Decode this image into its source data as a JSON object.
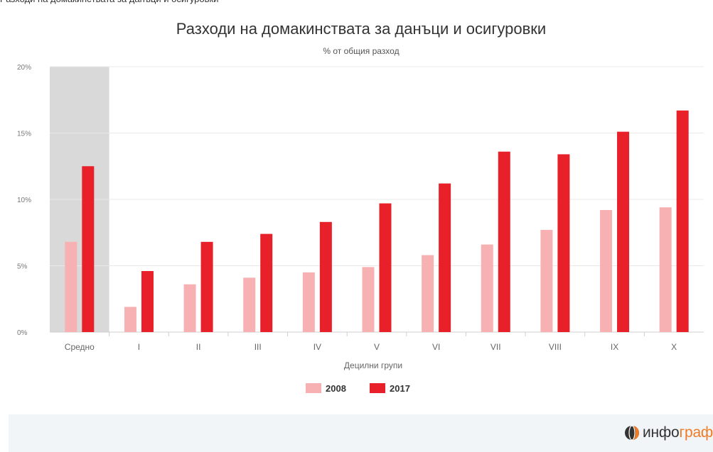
{
  "caption_fragment": "Разходи на домакинствата за данъци и осигуровки",
  "chart_data": {
    "type": "bar",
    "title": "Разходи на домакинствата за данъци и осигуровки",
    "subtitle": "% от общия разход",
    "xlabel": "Децилни групи",
    "ylabel": "",
    "ylim": [
      0,
      20
    ],
    "yticks": [
      0,
      5,
      10,
      15,
      20
    ],
    "ytick_labels": [
      "0%",
      "5%",
      "10%",
      "15%",
      "20%"
    ],
    "categories": [
      "Средно",
      "I",
      "II",
      "III",
      "IV",
      "V",
      "VI",
      "VII",
      "VIII",
      "IX",
      "X"
    ],
    "highlighted_category": "Средно",
    "grid": true,
    "legend_position": "bottom-center",
    "series": [
      {
        "name": "2008",
        "color": "#f7b1b3",
        "values": [
          6.8,
          1.9,
          3.6,
          4.1,
          4.5,
          4.9,
          5.8,
          6.6,
          7.7,
          9.2,
          9.4
        ]
      },
      {
        "name": "2017",
        "color": "#e8202a",
        "values": [
          12.5,
          4.6,
          6.8,
          7.4,
          8.3,
          9.7,
          11.2,
          13.6,
          13.4,
          15.1,
          16.7
        ]
      }
    ]
  },
  "brand": {
    "logo_text_main": "инфо",
    "logo_text_accent": "граф",
    "accent_color": "#f07b27",
    "logo_icon": "infograf-globe-icon"
  }
}
